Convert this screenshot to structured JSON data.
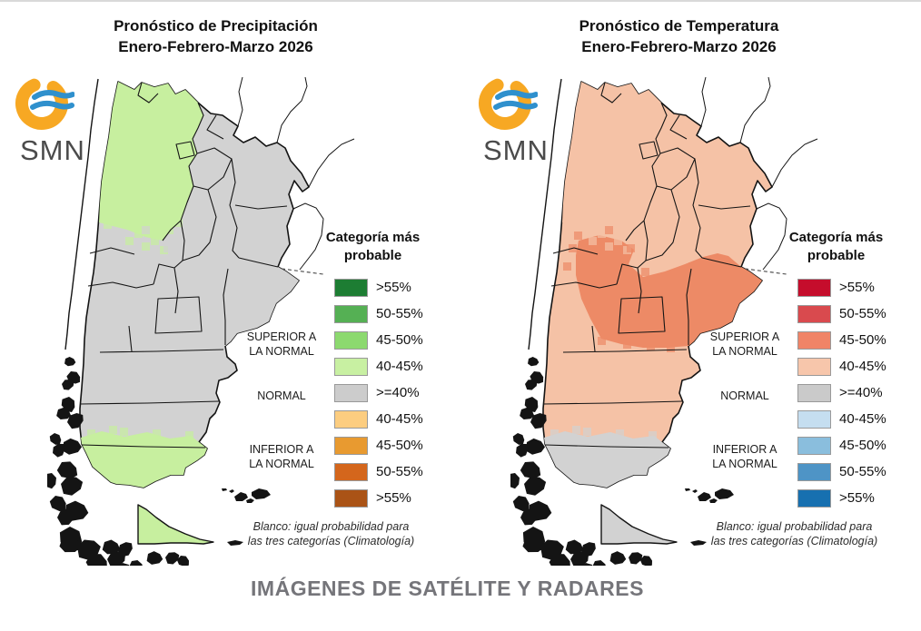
{
  "page": {
    "footer_title": "IMÁGENES DE SATÉLITE Y RADARES"
  },
  "colors": {
    "page_top_border": "#d9d9d9",
    "footer_text": "#75757a",
    "map_outline": "#141414",
    "legend_swatch_border": "#999999"
  },
  "panels": [
    {
      "id": "precipitation",
      "title_line1": "Pronóstico de Precipitación",
      "title_line2": "Enero-Febrero-Marzo 2026",
      "logo": {
        "text": "SMN"
      },
      "legend": {
        "title_line1": "Categoría más",
        "title_line2": "probable",
        "rows": [
          {
            "label": ">55%",
            "color": "#1d7d33"
          },
          {
            "label": "50-55%",
            "color": "#55b054"
          },
          {
            "label": "45-50%",
            "color": "#8cd96f"
          },
          {
            "label": "40-45%",
            "color": "#c8f0a2"
          },
          {
            "label": ">=40%",
            "color": "#cccccc"
          },
          {
            "label": "40-45%",
            "color": "#fccd80"
          },
          {
            "label": "45-50%",
            "color": "#e89a30"
          },
          {
            "label": "50-55%",
            "color": "#d4661c"
          },
          {
            "label": ">55%",
            "color": "#aa5316"
          }
        ],
        "category_above_line1": "SUPERIOR A",
        "category_above_line2": "LA NORMAL",
        "category_normal": "NORMAL",
        "category_below_line1": "INFERIOR A",
        "category_below_line2": "LA NORMAL"
      },
      "footnote_line1": "Blanco: igual probabilidad para",
      "footnote_line2": "las tres categorías (Climatología)",
      "map_fills": {
        "base": "#d2d2d2",
        "nw": "#c7ef9f",
        "cuyo": "#d2d2d2",
        "south": "#c7ef9f",
        "tdf": "#c7ef9f"
      }
    },
    {
      "id": "temperature",
      "title_line1": "Pronóstico de Temperatura",
      "title_line2": "Enero-Febrero-Marzo 2026",
      "logo": {
        "text": "SMN"
      },
      "legend": {
        "title_line1": "Categoría más",
        "title_line2": "probable",
        "rows": [
          {
            "label": ">55%",
            "color": "#c50d2c"
          },
          {
            "label": "50-55%",
            "color": "#d94a4e"
          },
          {
            "label": "45-50%",
            "color": "#f08467"
          },
          {
            "label": "40-45%",
            "color": "#f7c6ab"
          },
          {
            "label": ">=40%",
            "color": "#cacaca"
          },
          {
            "label": "40-45%",
            "color": "#c5def0"
          },
          {
            "label": "45-50%",
            "color": "#8abedd"
          },
          {
            "label": "50-55%",
            "color": "#4e94c6"
          },
          {
            "label": ">55%",
            "color": "#1770b0"
          }
        ],
        "category_above_line1": "SUPERIOR A",
        "category_above_line2": "LA NORMAL",
        "category_normal": "NORMAL",
        "category_below_line1": "INFERIOR A",
        "category_below_line2": "LA NORMAL"
      },
      "footnote_line1": "Blanco: igual probabilidad para",
      "footnote_line2": "las tres categorías (Climatología)",
      "map_fills": {
        "base": "#f5c2a6",
        "nw": "#f5c2a6",
        "cuyo": "#ed8a66",
        "south": "#d2d2d2",
        "tdf": "#d2d2d2"
      }
    }
  ]
}
